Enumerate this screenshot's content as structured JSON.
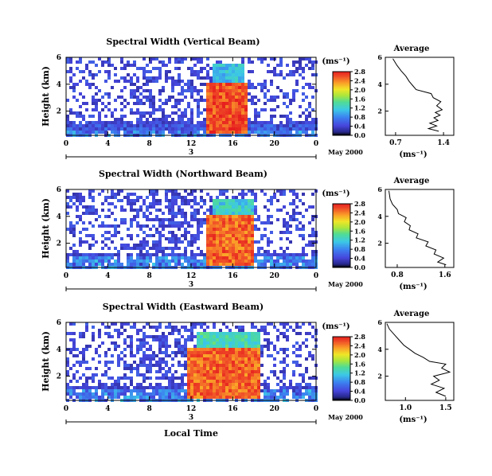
{
  "figure": {
    "xlabel": "Local Time",
    "date_label": "May 2000",
    "avg_title": "Average",
    "units_label": "(ms⁻¹)",
    "day_label": "3"
  },
  "chart_data": [
    {
      "type": "heatmap",
      "title": "Spectral Width (Vertical Beam)",
      "xlabel": "",
      "ylabel": "Height (km)",
      "xticks": [
        "0",
        "4",
        "8",
        "12",
        "16",
        "20",
        "0"
      ],
      "xlim": [
        0,
        24
      ],
      "yticks": [
        "2",
        "4",
        "6"
      ],
      "ylim": [
        0.2,
        6.0
      ],
      "colorbar": {
        "label": "(ms⁻¹)",
        "ticks": [
          "0.0",
          "0.4",
          "0.8",
          "1.2",
          "1.6",
          "2.0",
          "2.4",
          "2.8"
        ],
        "range": [
          0.0,
          2.8
        ]
      },
      "regions": [
        {
          "t0": 0,
          "t1": 24,
          "h0": 0.5,
          "h1": 1.0,
          "value": 0.5
        },
        {
          "t0": 13.5,
          "t1": 17.5,
          "h0": 0.3,
          "h1": 4.0,
          "value": 2.6
        },
        {
          "t0": 14.0,
          "t1": 17.0,
          "h0": 4.0,
          "h1": 5.5,
          "value": 1.1
        }
      ]
    },
    {
      "type": "heatmap",
      "title": "Spectral Width (Northward Beam)",
      "xlabel": "",
      "ylabel": "Height (km)",
      "xticks": [
        "0",
        "4",
        "8",
        "12",
        "16",
        "20",
        "0"
      ],
      "xlim": [
        0,
        24
      ],
      "yticks": [
        "2",
        "4",
        "6"
      ],
      "ylim": [
        0.2,
        6.0
      ],
      "colorbar": {
        "label": "(ms⁻¹)",
        "ticks": [
          "0.0",
          "0.4",
          "0.8",
          "1.2",
          "1.6",
          "2.0",
          "2.4",
          "2.8"
        ],
        "range": [
          0.0,
          2.8
        ]
      },
      "regions": [
        {
          "t0": 13.5,
          "t1": 18.0,
          "h0": 0.3,
          "h1": 4.0,
          "value": 2.5
        },
        {
          "t0": 14.0,
          "t1": 18.0,
          "h0": 4.0,
          "h1": 5.3,
          "value": 1.2
        }
      ]
    },
    {
      "type": "heatmap",
      "title": "Spectral Width (Eastward Beam)",
      "xlabel": "Local Time",
      "ylabel": "Height (km)",
      "xticks": [
        "0",
        "4",
        "8",
        "12",
        "16",
        "20",
        "0"
      ],
      "xlim": [
        0,
        24
      ],
      "yticks": [
        "2",
        "4",
        "6"
      ],
      "ylim": [
        0.2,
        6.0
      ],
      "colorbar": {
        "label": "(ms⁻¹)",
        "ticks": [
          "0.0",
          "0.4",
          "0.8",
          "1.2",
          "1.6",
          "2.0",
          "2.4",
          "2.8"
        ],
        "range": [
          0.0,
          2.8
        ]
      },
      "regions": [
        {
          "t0": 11.5,
          "t1": 18.5,
          "h0": 0.3,
          "h1": 4.0,
          "value": 2.5
        },
        {
          "t0": 12.5,
          "t1": 18.5,
          "h0": 4.0,
          "h1": 5.3,
          "value": 1.3
        }
      ]
    },
    {
      "type": "line",
      "title": "Average",
      "xlabel": "(ms⁻¹)",
      "ylabel": "",
      "xticks": [
        "0.7",
        "1.4"
      ],
      "xlim": [
        0.55,
        1.55
      ],
      "yticks": [
        "2",
        "4",
        "6"
      ],
      "ylim": [
        0.2,
        6.0
      ],
      "profile": [
        [
          1.33,
          0.5
        ],
        [
          1.18,
          0.7
        ],
        [
          1.3,
          0.9
        ],
        [
          1.2,
          1.1
        ],
        [
          1.32,
          1.3
        ],
        [
          1.26,
          1.5
        ],
        [
          1.35,
          1.7
        ],
        [
          1.28,
          1.9
        ],
        [
          1.38,
          2.1
        ],
        [
          1.3,
          2.4
        ],
        [
          1.36,
          2.7
        ],
        [
          1.25,
          3.0
        ],
        [
          1.22,
          3.3
        ],
        [
          1.0,
          3.6
        ],
        [
          0.95,
          3.9
        ],
        [
          0.9,
          4.2
        ],
        [
          0.85,
          4.6
        ],
        [
          0.78,
          5.0
        ],
        [
          0.72,
          5.4
        ],
        [
          0.66,
          5.9
        ]
      ]
    },
    {
      "type": "line",
      "title": "Average",
      "xlabel": "(ms⁻¹)",
      "ylabel": "",
      "xticks": [
        "0.8",
        "1.6"
      ],
      "xlim": [
        0.6,
        1.75
      ],
      "yticks": [
        "2",
        "4",
        "6"
      ],
      "ylim": [
        0.2,
        6.0
      ],
      "profile": [
        [
          1.62,
          0.4
        ],
        [
          1.48,
          0.6
        ],
        [
          1.58,
          0.9
        ],
        [
          1.42,
          1.2
        ],
        [
          1.45,
          1.5
        ],
        [
          1.28,
          1.8
        ],
        [
          1.32,
          2.1
        ],
        [
          1.12,
          2.4
        ],
        [
          1.15,
          2.7
        ],
        [
          1.0,
          3.0
        ],
        [
          1.02,
          3.3
        ],
        [
          0.92,
          3.6
        ],
        [
          0.95,
          3.9
        ],
        [
          0.82,
          4.2
        ],
        [
          0.8,
          4.5
        ],
        [
          0.72,
          4.9
        ],
        [
          0.68,
          5.3
        ],
        [
          0.66,
          5.9
        ]
      ]
    },
    {
      "type": "line",
      "title": "Average",
      "xlabel": "(ms⁻¹)",
      "ylabel": "",
      "xticks": [
        "1.0",
        "1.5"
      ],
      "xlim": [
        0.75,
        1.6
      ],
      "yticks": [
        "2",
        "4",
        "6"
      ],
      "ylim": [
        0.2,
        6.0
      ],
      "profile": [
        [
          1.5,
          0.5
        ],
        [
          1.38,
          0.8
        ],
        [
          1.48,
          1.1
        ],
        [
          1.32,
          1.4
        ],
        [
          1.42,
          1.7
        ],
        [
          1.35,
          2.0
        ],
        [
          1.55,
          2.3
        ],
        [
          1.45,
          2.6
        ],
        [
          1.5,
          2.9
        ],
        [
          1.3,
          3.1
        ],
        [
          1.22,
          3.4
        ],
        [
          1.12,
          3.7
        ],
        [
          1.05,
          4.0
        ],
        [
          0.98,
          4.3
        ],
        [
          0.92,
          4.7
        ],
        [
          0.86,
          5.1
        ],
        [
          0.8,
          5.5
        ],
        [
          0.77,
          5.9
        ]
      ]
    }
  ]
}
